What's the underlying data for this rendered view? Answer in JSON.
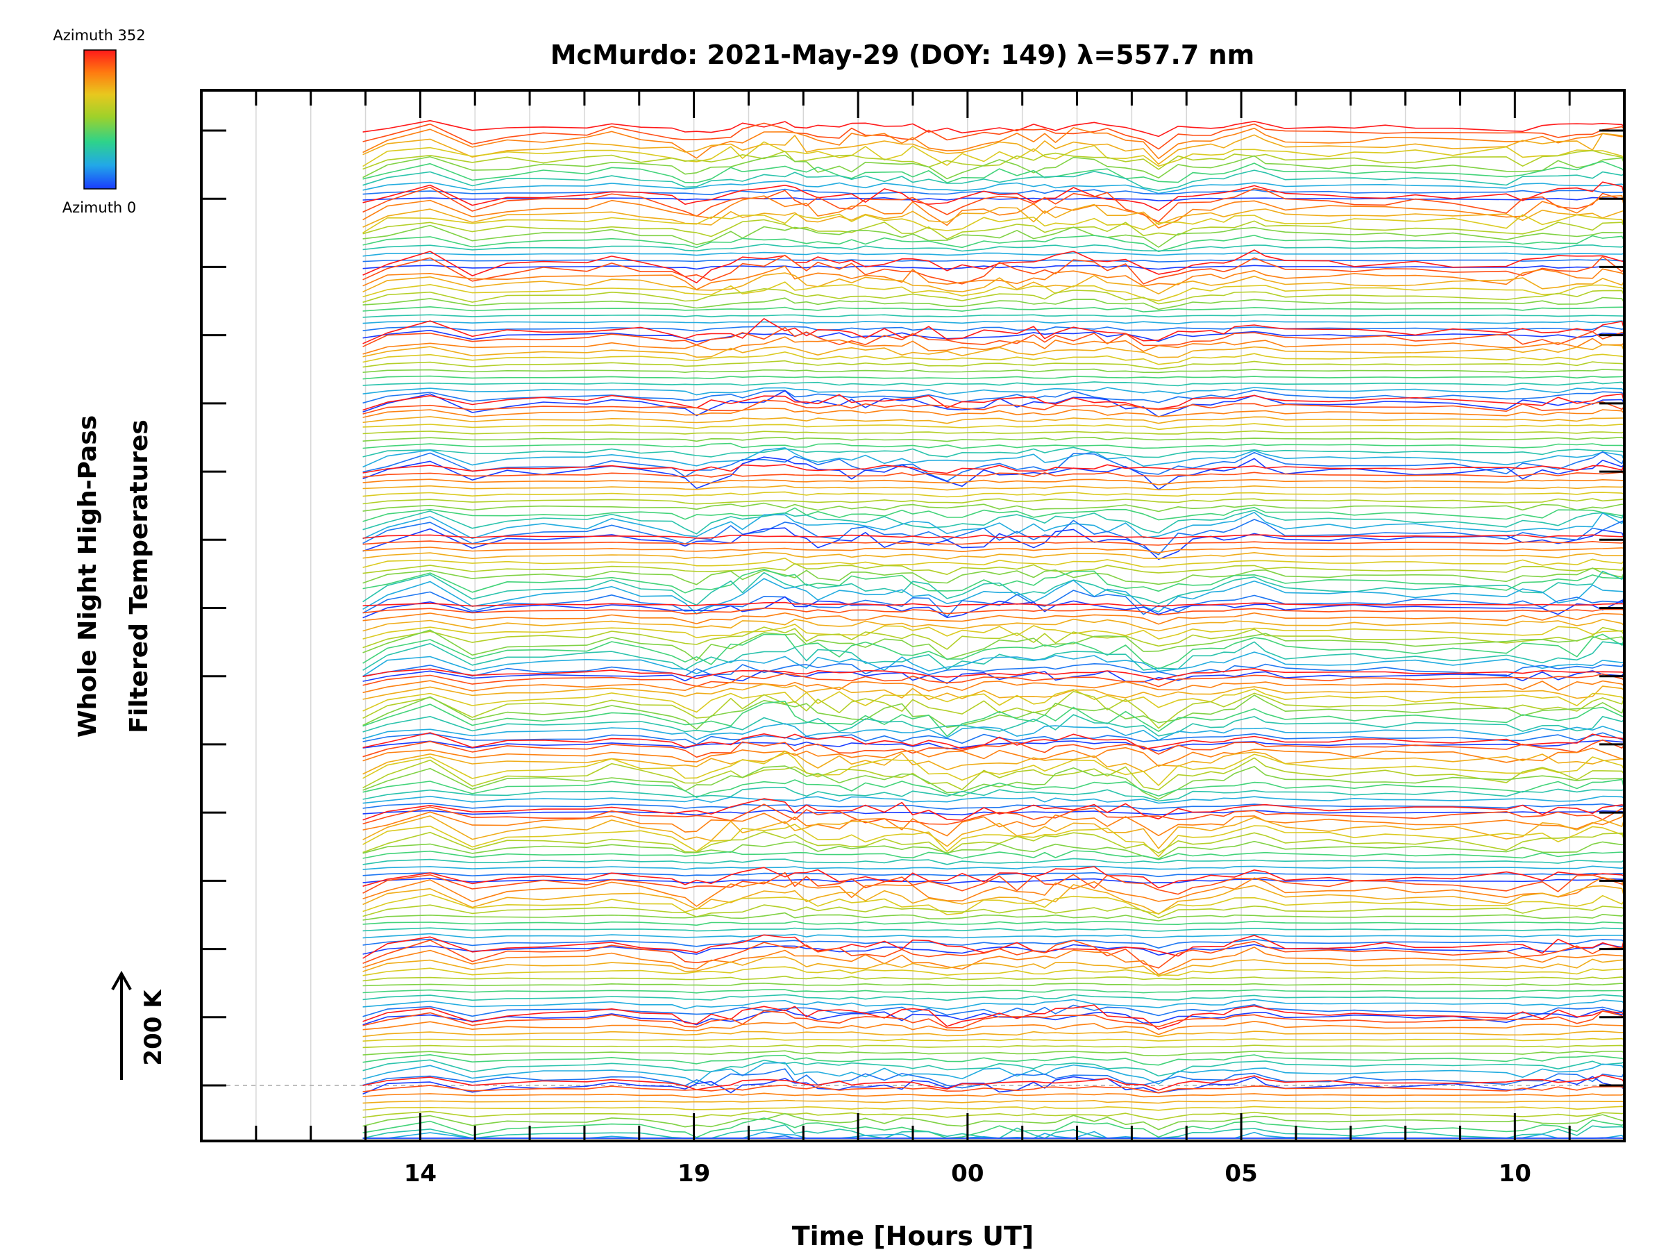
{
  "chart_data": {
    "type": "line",
    "title": "McMurdo: 2021-May-29 (DOY: 149) λ=557.7 nm",
    "xlabel": "Time [Hours UT]",
    "ylabel_line1": "Whole Night High-Pass",
    "ylabel_line2": "Filtered Temperatures",
    "scale_label": "200 K",
    "colorbar": {
      "label_top": "Azimuth 352",
      "label_bottom": "Azimuth 0",
      "azimuth_min": 0,
      "azimuth_max": 352,
      "colormap": [
        "#1a3cff",
        "#22a8e8",
        "#2ed38a",
        "#9fd12a",
        "#e8c81e",
        "#ff7a10",
        "#ff1a1a"
      ]
    },
    "x_hours_elapsed_range": [
      -1,
      25
    ],
    "x_ticks": [
      {
        "label": "14",
        "hour": 3
      },
      {
        "label": "19",
        "hour": 8
      },
      {
        "label": "00",
        "hour": 13
      },
      {
        "label": "05",
        "hour": 18
      },
      {
        "label": "10",
        "hour": 23
      }
    ],
    "x_start_label_hour": 11,
    "data_hour_range": [
      1.95,
      25
    ],
    "offset_rows": 15,
    "traces_per_row": 12,
    "row_spacing_kelvin": 200,
    "feature_times_hours": [
      3.0,
      4.1,
      6.6,
      8.0,
      9.5,
      12.7,
      15.1,
      16.5,
      18.2,
      22.5,
      24.7
    ],
    "y_ticks_count": 15
  }
}
